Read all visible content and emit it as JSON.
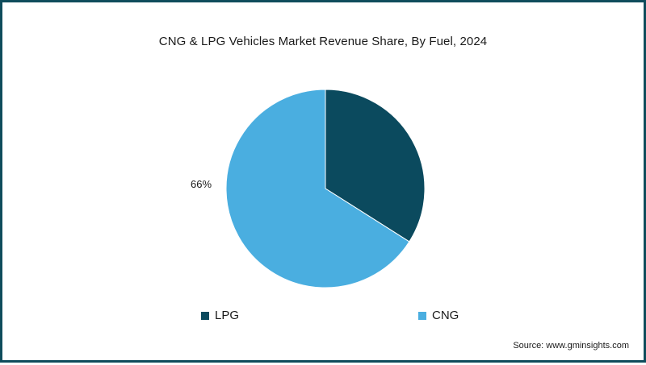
{
  "chart_data": {
    "type": "pie",
    "title": "CNG & LPG Vehicles Market Revenue Share, By Fuel, 2024",
    "categories": [
      "LPG",
      "CNG"
    ],
    "values": [
      34,
      66
    ],
    "colors": [
      "#0b4a5e",
      "#4aaee0"
    ],
    "data_labels": [
      {
        "category": "CNG",
        "text": "66%"
      }
    ],
    "legend": {
      "position": "bottom",
      "items": [
        {
          "label": "LPG",
          "color": "#0b4a5e"
        },
        {
          "label": "CNG",
          "color": "#4aaee0"
        }
      ]
    },
    "source": "Source: www.gminsights.com"
  },
  "theme": {
    "border_color": "#0f4c5c"
  }
}
